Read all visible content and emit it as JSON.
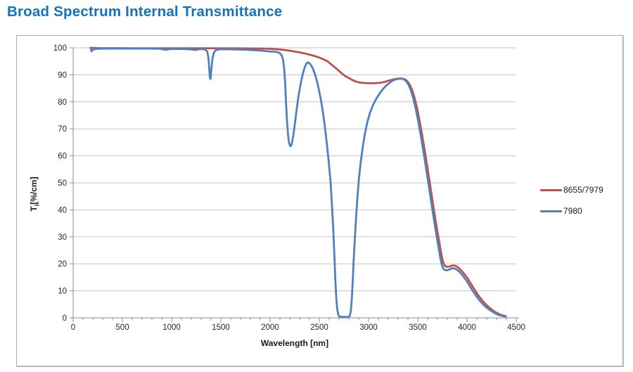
{
  "page": {
    "title": "Broad Spectrum Internal Transmittance",
    "title_color": "#1372B9",
    "background": "#FFFFFF"
  },
  "chart_data": {
    "type": "line",
    "title": "Broad Spectrum Internal Transmittance",
    "xlabel": "Wavelength [nm]",
    "ylabel": {
      "base": "T",
      "sub": "i",
      "rest": "[%/cm]"
    },
    "xlim": [
      0,
      4500
    ],
    "ylim": [
      0,
      100
    ],
    "x_ticks": [
      0,
      500,
      1000,
      1500,
      2000,
      2500,
      3000,
      3500,
      4000,
      4500
    ],
    "x_minor_step": 100,
    "y_ticks": [
      0,
      10,
      20,
      30,
      40,
      50,
      60,
      70,
      80,
      90,
      100
    ],
    "grid": "horizontal",
    "legend_position": "right-of-plot",
    "style": {
      "grid_color": "#C6C6C6",
      "axis_color": "#8E8E8E",
      "line_width": 2.8,
      "chart_border_color": "#ABABAB"
    },
    "series": [
      {
        "name": "8655/7979",
        "color": "#C0504D",
        "points": [
          [
            176,
            100
          ],
          [
            250,
            99.9
          ],
          [
            600,
            99.85
          ],
          [
            1000,
            99.85
          ],
          [
            1400,
            99.85
          ],
          [
            1700,
            99.8
          ],
          [
            1900,
            99.75
          ],
          [
            2000,
            99.65
          ],
          [
            2060,
            99.5
          ],
          [
            2120,
            99.3
          ],
          [
            2180,
            99.05
          ],
          [
            2240,
            98.7
          ],
          [
            2300,
            98.3
          ],
          [
            2360,
            97.85
          ],
          [
            2420,
            97.3
          ],
          [
            2480,
            96.65
          ],
          [
            2530,
            95.95
          ],
          [
            2580,
            95.1
          ],
          [
            2630,
            93.6
          ],
          [
            2680,
            92.1
          ],
          [
            2720,
            90.8
          ],
          [
            2760,
            89.6
          ],
          [
            2800,
            88.8
          ],
          [
            2840,
            88.0
          ],
          [
            2880,
            87.4
          ],
          [
            2920,
            87.1
          ],
          [
            2960,
            86.95
          ],
          [
            3010,
            86.9
          ],
          [
            3060,
            86.9
          ],
          [
            3110,
            87.0
          ],
          [
            3160,
            87.35
          ],
          [
            3210,
            87.9
          ],
          [
            3255,
            88.3
          ],
          [
            3295,
            88.55
          ],
          [
            3340,
            88.6
          ],
          [
            3365,
            88.4
          ],
          [
            3390,
            87.8
          ],
          [
            3415,
            86.6
          ],
          [
            3440,
            84.7
          ],
          [
            3465,
            81.8
          ],
          [
            3490,
            78.1
          ],
          [
            3515,
            73.6
          ],
          [
            3540,
            68.6
          ],
          [
            3565,
            63.2
          ],
          [
            3590,
            57.5
          ],
          [
            3615,
            51.7
          ],
          [
            3640,
            45.7
          ],
          [
            3665,
            39.7
          ],
          [
            3690,
            34.0
          ],
          [
            3710,
            29.8
          ],
          [
            3725,
            26.6
          ],
          [
            3740,
            23.4
          ],
          [
            3755,
            20.9
          ],
          [
            3770,
            19.5
          ],
          [
            3785,
            19.0
          ],
          [
            3805,
            18.9
          ],
          [
            3830,
            19.1
          ],
          [
            3855,
            19.4
          ],
          [
            3880,
            19.3
          ],
          [
            3905,
            18.8
          ],
          [
            3930,
            18.0
          ],
          [
            3955,
            17.0
          ],
          [
            3980,
            15.9
          ],
          [
            4010,
            14.4
          ],
          [
            4040,
            12.6
          ],
          [
            4070,
            10.8
          ],
          [
            4100,
            9.1
          ],
          [
            4130,
            7.6
          ],
          [
            4160,
            6.2
          ],
          [
            4190,
            5.0
          ],
          [
            4220,
            4.0
          ],
          [
            4250,
            3.1
          ],
          [
            4280,
            2.3
          ],
          [
            4310,
            1.7
          ],
          [
            4340,
            1.2
          ],
          [
            4370,
            0.8
          ],
          [
            4395,
            0.6
          ]
        ]
      },
      {
        "name": "7980",
        "color": "#4F81BD",
        "points": [
          [
            180,
            99.5
          ],
          [
            186,
            98.7
          ],
          [
            196,
            99.1
          ],
          [
            215,
            99.5
          ],
          [
            260,
            99.7
          ],
          [
            400,
            99.72
          ],
          [
            600,
            99.72
          ],
          [
            800,
            99.72
          ],
          [
            880,
            99.65
          ],
          [
            915,
            99.45
          ],
          [
            945,
            99.25
          ],
          [
            975,
            99.5
          ],
          [
            1040,
            99.6
          ],
          [
            1120,
            99.55
          ],
          [
            1190,
            99.45
          ],
          [
            1240,
            99.2
          ],
          [
            1285,
            99.5
          ],
          [
            1320,
            99.5
          ],
          [
            1345,
            99.3
          ],
          [
            1362,
            98.6
          ],
          [
            1375,
            96.0
          ],
          [
            1388,
            89.2
          ],
          [
            1395,
            88.5
          ],
          [
            1402,
            91.5
          ],
          [
            1415,
            96.0
          ],
          [
            1430,
            98.3
          ],
          [
            1450,
            99.2
          ],
          [
            1490,
            99.45
          ],
          [
            1570,
            99.45
          ],
          [
            1660,
            99.4
          ],
          [
            1760,
            99.3
          ],
          [
            1840,
            99.15
          ],
          [
            1890,
            99.0
          ],
          [
            1930,
            98.9
          ],
          [
            1965,
            98.75
          ],
          [
            2000,
            98.65
          ],
          [
            2040,
            98.6
          ],
          [
            2075,
            98.4
          ],
          [
            2100,
            98.0
          ],
          [
            2118,
            97.2
          ],
          [
            2132,
            95.5
          ],
          [
            2143,
            92.5
          ],
          [
            2152,
            87.5
          ],
          [
            2161,
            80.5
          ],
          [
            2172,
            73.0
          ],
          [
            2183,
            67.5
          ],
          [
            2194,
            64.6
          ],
          [
            2205,
            63.6
          ],
          [
            2215,
            63.8
          ],
          [
            2226,
            65.3
          ],
          [
            2240,
            68.5
          ],
          [
            2255,
            72.8
          ],
          [
            2272,
            77.8
          ],
          [
            2290,
            82.5
          ],
          [
            2310,
            86.6
          ],
          [
            2330,
            90.0
          ],
          [
            2350,
            92.6
          ],
          [
            2370,
            94.2
          ],
          [
            2385,
            94.6
          ],
          [
            2400,
            94.3
          ],
          [
            2418,
            93.5
          ],
          [
            2436,
            92.2
          ],
          [
            2455,
            90.3
          ],
          [
            2475,
            87.8
          ],
          [
            2495,
            84.7
          ],
          [
            2515,
            81.0
          ],
          [
            2535,
            76.6
          ],
          [
            2555,
            71.3
          ],
          [
            2575,
            65.0
          ],
          [
            2595,
            58.0
          ],
          [
            2615,
            50.0
          ],
          [
            2628,
            42.0
          ],
          [
            2640,
            34.0
          ],
          [
            2652,
            24.0
          ],
          [
            2663,
            14.0
          ],
          [
            2673,
            7.0
          ],
          [
            2683,
            3.0
          ],
          [
            2694,
            1.0
          ],
          [
            2705,
            0.45
          ],
          [
            2730,
            0.35
          ],
          [
            2770,
            0.35
          ],
          [
            2800,
            0.4
          ],
          [
            2810,
            0.8
          ],
          [
            2820,
            2.5
          ],
          [
            2830,
            7.0
          ],
          [
            2840,
            14.0
          ],
          [
            2850,
            22.0
          ],
          [
            2862,
            30.0
          ],
          [
            2875,
            38.0
          ],
          [
            2888,
            45.0
          ],
          [
            2902,
            51.5
          ],
          [
            2920,
            57.5
          ],
          [
            2940,
            63.0
          ],
          [
            2962,
            68.0
          ],
          [
            2988,
            72.5
          ],
          [
            3015,
            76.0
          ],
          [
            3045,
            78.8
          ],
          [
            3080,
            81.2
          ],
          [
            3115,
            83.2
          ],
          [
            3150,
            84.9
          ],
          [
            3185,
            86.2
          ],
          [
            3220,
            87.2
          ],
          [
            3255,
            88.0
          ],
          [
            3290,
            88.5
          ],
          [
            3330,
            88.7
          ],
          [
            3355,
            88.4
          ],
          [
            3380,
            87.7
          ],
          [
            3405,
            86.4
          ],
          [
            3430,
            84.3
          ],
          [
            3455,
            81.2
          ],
          [
            3480,
            77.3
          ],
          [
            3505,
            72.7
          ],
          [
            3530,
            67.6
          ],
          [
            3555,
            62.1
          ],
          [
            3580,
            56.4
          ],
          [
            3605,
            50.5
          ],
          [
            3630,
            44.5
          ],
          [
            3655,
            38.5
          ],
          [
            3680,
            32.7
          ],
          [
            3700,
            28.4
          ],
          [
            3715,
            25.2
          ],
          [
            3730,
            22.0
          ],
          [
            3745,
            19.5
          ],
          [
            3760,
            18.2
          ],
          [
            3775,
            17.7
          ],
          [
            3795,
            17.6
          ],
          [
            3820,
            17.9
          ],
          [
            3845,
            18.3
          ],
          [
            3870,
            18.3
          ],
          [
            3895,
            17.9
          ],
          [
            3920,
            17.2
          ],
          [
            3945,
            16.2
          ],
          [
            3970,
            15.0
          ],
          [
            4000,
            13.5
          ],
          [
            4030,
            11.7
          ],
          [
            4060,
            9.9
          ],
          [
            4090,
            8.3
          ],
          [
            4120,
            6.8
          ],
          [
            4150,
            5.5
          ],
          [
            4180,
            4.4
          ],
          [
            4210,
            3.5
          ],
          [
            4240,
            2.7
          ],
          [
            4270,
            2.0
          ],
          [
            4300,
            1.4
          ],
          [
            4330,
            1.0
          ],
          [
            4360,
            0.7
          ],
          [
            4390,
            0.5
          ]
        ]
      }
    ]
  }
}
